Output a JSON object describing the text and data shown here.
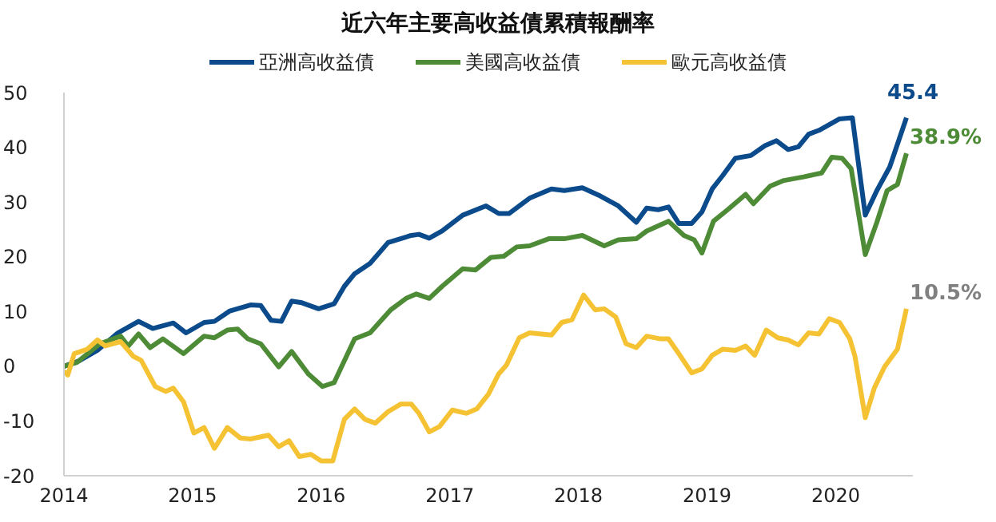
{
  "chart_data": {
    "type": "line",
    "title": "近六年主要高收益債累積報酬率",
    "series": [
      {
        "name": "亞洲高收益債",
        "color": "#0b4a8b",
        "x": [
          2014,
          2014.12,
          2014.26,
          2014.42,
          2014.58,
          2014.69,
          2014.85,
          2014.95,
          2015.09,
          2015.17,
          2015.29,
          2015.45,
          2015.53,
          2015.61,
          2015.69,
          2015.77,
          2015.85,
          2015.98,
          2016.1,
          2016.18,
          2016.26,
          2016.38,
          2016.52,
          2016.7,
          2016.76,
          2016.84,
          2016.94,
          2017.1,
          2017.28,
          2017.38,
          2017.46,
          2017.62,
          2017.79,
          2017.89,
          2018.03,
          2018.17,
          2018.31,
          2018.45,
          2018.53,
          2018.62,
          2018.7,
          2018.78,
          2018.88,
          2018.96,
          2019.04,
          2019.12,
          2019.22,
          2019.34,
          2019.45,
          2019.54,
          2019.63,
          2019.71,
          2019.79,
          2019.87,
          2020.03,
          2020.13,
          2020.23,
          2020.32,
          2020.42,
          2020.55
        ],
        "values": [
          0,
          1,
          2.9,
          6.1,
          8.2,
          6.9,
          7.9,
          6.1,
          8,
          8.2,
          10.1,
          11.2,
          11.1,
          8.4,
          8.2,
          11.9,
          11.6,
          10.5,
          11.4,
          14.6,
          16.9,
          18.8,
          22.6,
          23.9,
          24.1,
          23.4,
          24.7,
          27.6,
          29.3,
          27.9,
          27.9,
          30.7,
          32.4,
          32.1,
          32.6,
          31.1,
          29.3,
          26.3,
          28.9,
          28.6,
          29.1,
          26.1,
          26.1,
          28.2,
          32.4,
          34.8,
          38,
          38.5,
          40.3,
          41.2,
          39.6,
          40.1,
          42.4,
          43.1,
          45.2,
          45.4,
          27.6,
          32.1,
          36.4,
          45.4
        ]
      },
      {
        "name": "美國高收益債",
        "color": "#4e8b36",
        "x": [
          2014,
          2014.1,
          2014.28,
          2014.44,
          2014.5,
          2014.58,
          2014.67,
          2014.77,
          2014.93,
          2015.09,
          2015.17,
          2015.27,
          2015.35,
          2015.43,
          2015.53,
          2015.67,
          2015.77,
          2015.9,
          2016.01,
          2016.1,
          2016.26,
          2016.38,
          2016.54,
          2016.66,
          2016.74,
          2016.84,
          2016.94,
          2017.1,
          2017.2,
          2017.32,
          2017.42,
          2017.52,
          2017.62,
          2017.77,
          2017.89,
          2018.03,
          2018.2,
          2018.31,
          2018.45,
          2018.53,
          2018.7,
          2018.82,
          2018.9,
          2018.96,
          2019.05,
          2019.16,
          2019.3,
          2019.36,
          2019.49,
          2019.59,
          2019.75,
          2019.89,
          2019.97,
          2020.05,
          2020.12,
          2020.23,
          2020.32,
          2020.4,
          2020.48,
          2020.55
        ],
        "values": [
          0,
          0.7,
          4.1,
          5.5,
          3.7,
          5.9,
          3.4,
          5,
          2.3,
          5.5,
          5.2,
          6.6,
          6.8,
          5,
          4.1,
          -0.1,
          2.7,
          -1.4,
          -3.7,
          -3,
          5,
          6.1,
          10.3,
          12.4,
          13.2,
          12.4,
          14.6,
          17.8,
          17.6,
          19.9,
          20.1,
          21.8,
          22,
          23.3,
          23.3,
          23.9,
          22,
          23.1,
          23.3,
          24.7,
          26.5,
          23.9,
          23.1,
          20.7,
          26.5,
          28.6,
          31.4,
          29.7,
          32.9,
          33.9,
          34.6,
          35.3,
          38.2,
          38,
          36.1,
          20.4,
          26.3,
          32.1,
          33.2,
          38.9
        ]
      },
      {
        "name": "歐元高收益債",
        "color": "#f4c232",
        "x": [
          2014,
          2014.03,
          2014.08,
          2014.18,
          2014.26,
          2014.32,
          2014.44,
          2014.54,
          2014.6,
          2014.71,
          2014.79,
          2014.85,
          2014.93,
          2015.01,
          2015.09,
          2015.17,
          2015.27,
          2015.37,
          2015.45,
          2015.59,
          2015.67,
          2015.75,
          2015.83,
          2015.92,
          2016,
          2016.09,
          2016.18,
          2016.26,
          2016.34,
          2016.42,
          2016.52,
          2016.62,
          2016.7,
          2016.76,
          2016.84,
          2016.92,
          2017.02,
          2017.13,
          2017.21,
          2017.3,
          2017.38,
          2017.44,
          2017.54,
          2017.62,
          2017.79,
          2017.87,
          2017.95,
          2018.04,
          2018.13,
          2018.2,
          2018.29,
          2018.37,
          2018.45,
          2018.53,
          2018.64,
          2018.7,
          2018.78,
          2018.88,
          2018.96,
          2019.04,
          2019.12,
          2019.22,
          2019.3,
          2019.37,
          2019.46,
          2019.55,
          2019.63,
          2019.71,
          2019.79,
          2019.87,
          2019.95,
          2020.03,
          2020.11,
          2020.15,
          2020.23,
          2020.3,
          2020.38,
          2020.48,
          2020.55
        ],
        "values": [
          -0.9,
          -1.6,
          2.3,
          3.1,
          4.8,
          3.7,
          4.5,
          1.8,
          1.1,
          -3.7,
          -4.6,
          -4,
          -6.5,
          -12.2,
          -11.2,
          -15,
          -11.2,
          -13.1,
          -13.3,
          -12.6,
          -14.7,
          -13.6,
          -16.5,
          -16.1,
          -17.3,
          -17.3,
          -9.7,
          -7.8,
          -9.7,
          -10.4,
          -8.3,
          -6.9,
          -6.9,
          -8.6,
          -12,
          -11,
          -8,
          -8.6,
          -7.8,
          -5.1,
          -1.4,
          0.2,
          5.2,
          6.1,
          5.7,
          8,
          8.5,
          13,
          10.3,
          10.5,
          9,
          4.1,
          3.4,
          5.5,
          5,
          5,
          2.3,
          -1.2,
          -0.5,
          2,
          3.1,
          2.9,
          3.7,
          2,
          6.6,
          5.2,
          4.8,
          3.9,
          6.1,
          5.9,
          8.7,
          8,
          5,
          1.8,
          -9.4,
          -4,
          -0.1,
          3.1,
          10.5
        ]
      }
    ],
    "annotations": [
      "45.4",
      "38.9%",
      "10.5%"
    ],
    "xlim": [
      2014,
      2020.6
    ],
    "xticks": [
      2014,
      2015,
      2016,
      2017,
      2018,
      2019,
      2020
    ],
    "ylim": [
      -20,
      50
    ],
    "yticks": [
      -20,
      -10,
      0,
      10,
      20,
      30,
      40,
      50
    ],
    "grid": false,
    "legend": "top",
    "marker": "none",
    "line_style": "solid"
  }
}
